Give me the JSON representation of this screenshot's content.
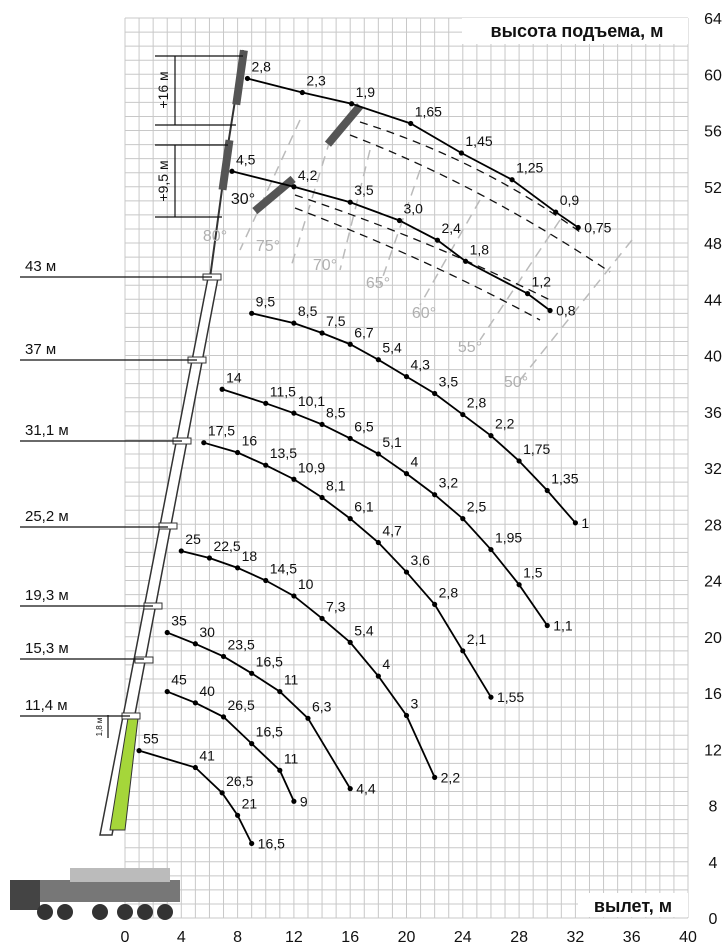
{
  "chart_data": {
    "type": "line",
    "y_title": "высота подъема, м",
    "x_title": "вылет, м",
    "xlim": [
      0,
      40
    ],
    "ylim": [
      0,
      64
    ],
    "xticks": [
      0,
      4,
      8,
      12,
      16,
      20,
      24,
      28,
      32,
      36,
      40
    ],
    "yticks": [
      0,
      4,
      8,
      12,
      16,
      20,
      24,
      28,
      32,
      36,
      40,
      44,
      48,
      52,
      56,
      60,
      64
    ],
    "grid": true,
    "angle_labels": [
      "30°",
      "80°",
      "75°",
      "70°",
      "65°",
      "60°",
      "55°",
      "50°"
    ],
    "annotations": [
      "1,8 м"
    ],
    "series": [
      {
        "name": "11,4 м",
        "color": "#000000",
        "x": [
          1,
          5,
          6.9,
          8,
          9
        ],
        "values": [
          11.9,
          10.7,
          8.9,
          7.3,
          5.3
        ],
        "point_labels": [
          "55",
          "41",
          "26,5",
          "21",
          "16,5"
        ]
      },
      {
        "name": "15,3 м",
        "color": "#000000",
        "x": [
          3,
          5,
          7,
          9,
          11,
          12
        ],
        "values": [
          16.1,
          15.3,
          14.3,
          12.4,
          10.5,
          8.3
        ],
        "point_labels": [
          "45",
          "40",
          "26,5",
          "16,5",
          "11",
          "9"
        ]
      },
      {
        "name": "19,3 м",
        "color": "#000000",
        "x": [
          3,
          5,
          7,
          9,
          11,
          13,
          16
        ],
        "values": [
          20.3,
          19.5,
          18.6,
          17.4,
          16.1,
          14.2,
          9.2
        ],
        "point_labels": [
          "35",
          "30",
          "23,5",
          "16,5",
          "11",
          "6,3",
          "4,4"
        ]
      },
      {
        "name": "25,2 м",
        "color": "#000000",
        "x": [
          4,
          6,
          8,
          10,
          12,
          14,
          16,
          18,
          20,
          22
        ],
        "values": [
          26.1,
          25.6,
          24.9,
          24,
          22.9,
          21.3,
          19.6,
          17.2,
          14.4,
          10
        ],
        "point_labels": [
          "25",
          "22,5",
          "18",
          "14,5",
          "10",
          "7,3",
          "5,4",
          "4",
          "3",
          "2,2"
        ]
      },
      {
        "name": "31,1 м",
        "color": "#000000",
        "x": [
          5.6,
          8,
          10,
          12,
          14,
          16,
          18,
          20,
          22,
          24,
          26
        ],
        "values": [
          33.8,
          33.1,
          32.2,
          31.2,
          29.9,
          28.4,
          26.7,
          24.6,
          22.3,
          19,
          15.7
        ],
        "point_labels": [
          "17,5",
          "16",
          "13,5",
          "10,9",
          "8,1",
          "6,1",
          "4,7",
          "3,6",
          "2,8",
          "2,1",
          "1,55"
        ]
      },
      {
        "name": "37 м",
        "color": "#000000",
        "x": [
          6.9,
          10,
          12,
          14,
          16,
          18,
          20,
          22,
          24,
          26,
          28,
          30
        ],
        "values": [
          37.6,
          36.6,
          35.9,
          35.1,
          34.1,
          33,
          31.6,
          30.1,
          28.4,
          26.2,
          23.7,
          20.8
        ],
        "point_labels": [
          "14",
          "11,5",
          "10,1",
          "8,5",
          "6,5",
          "5,1",
          "4",
          "3,2",
          "2,5",
          "1,95",
          "1,5",
          "1,1"
        ]
      },
      {
        "name": "43 м",
        "color": "#000000",
        "x": [
          9,
          12,
          14,
          16,
          18,
          20,
          22,
          24,
          26,
          28,
          30,
          32
        ],
        "values": [
          43,
          42.3,
          41.6,
          40.8,
          39.7,
          38.5,
          37.3,
          35.8,
          34.3,
          32.5,
          30.4,
          28.1
        ],
        "point_labels": [
          "9,5",
          "8,5",
          "7,5",
          "6,7",
          "5,4",
          "4,3",
          "3,5",
          "2,8",
          "2,2",
          "1,75",
          "1,35",
          "1"
        ]
      },
      {
        "name": "+9,5 м",
        "color": "#000000",
        "x": [
          7.6,
          12,
          16,
          19.5,
          22.2,
          24.2,
          28.6,
          30.2
        ],
        "values": [
          53.1,
          52,
          50.9,
          49.6,
          48.2,
          46.7,
          44.4,
          43.2
        ],
        "point_labels": [
          "4,5",
          "4,2",
          "3,5",
          "3,0",
          "2,4",
          "1,8",
          "1,2",
          "0,8"
        ]
      },
      {
        "name": "+16 м",
        "color": "#000000",
        "x": [
          8.7,
          12.6,
          16.1,
          20.3,
          23.9,
          27.5,
          30.6,
          32.2
        ],
        "values": [
          59.7,
          58.7,
          57.9,
          56.5,
          54.4,
          52.5,
          50.2,
          49.1
        ],
        "point_labels": [
          "2,8",
          "2,3",
          "1,9",
          "1,65",
          "1,45",
          "1,25",
          "0,9",
          "0,75"
        ]
      }
    ]
  }
}
